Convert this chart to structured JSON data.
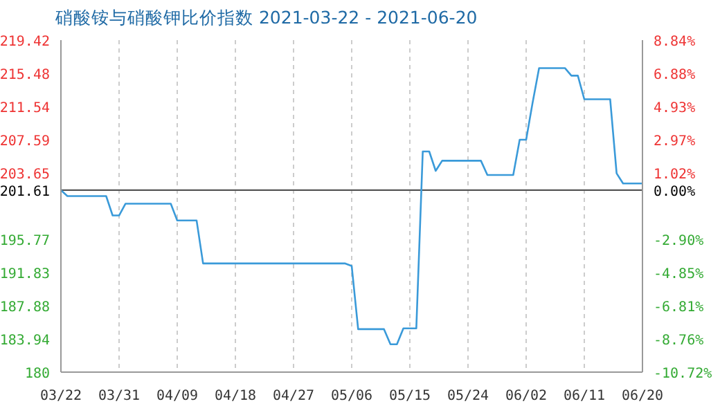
{
  "chart_data": {
    "type": "line",
    "title": "硝酸铵与硝酸钾比价指数 2021-03-22 - 2021-06-20",
    "x": [
      "2021-03-22",
      "2021-03-23",
      "2021-03-29",
      "2021-03-30",
      "2021-03-31",
      "2021-04-01",
      "2021-04-08",
      "2021-04-09",
      "2021-04-12",
      "2021-04-13",
      "2021-05-05",
      "2021-05-06",
      "2021-05-07",
      "2021-05-11",
      "2021-05-12",
      "2021-05-13",
      "2021-05-14",
      "2021-05-16",
      "2021-05-17",
      "2021-05-18",
      "2021-05-19",
      "2021-05-20",
      "2021-05-26",
      "2021-05-27",
      "2021-05-31",
      "2021-06-01",
      "2021-06-02",
      "2021-06-03",
      "2021-06-04",
      "2021-06-08",
      "2021-06-09",
      "2021-06-10",
      "2021-06-11",
      "2021-06-15",
      "2021-06-16",
      "2021-06-17",
      "2021-06-20"
    ],
    "series": [
      {
        "color": "#3a9ad9",
        "values": [
          201.6,
          200.9,
          200.9,
          198.6,
          198.6,
          200.0,
          200.0,
          198.0,
          198.0,
          192.9,
          192.9,
          192.6,
          185.1,
          185.1,
          183.3,
          183.3,
          185.2,
          185.2,
          206.2,
          206.2,
          203.9,
          205.1,
          205.1,
          203.4,
          203.4,
          207.6,
          207.6,
          212.0,
          216.1,
          216.1,
          215.2,
          215.2,
          212.4,
          212.4,
          203.6,
          202.4,
          202.4
        ]
      }
    ],
    "xlim": [
      "2021-03-22",
      "2021-06-20"
    ],
    "xticks": [
      {
        "value": "2021-03-22",
        "label": "03/22"
      },
      {
        "value": "2021-03-31",
        "label": "03/31"
      },
      {
        "value": "2021-04-09",
        "label": "04/09"
      },
      {
        "value": "2021-04-18",
        "label": "04/18"
      },
      {
        "value": "2021-04-27",
        "label": "04/27"
      },
      {
        "value": "2021-05-06",
        "label": "05/06"
      },
      {
        "value": "2021-05-15",
        "label": "05/15"
      },
      {
        "value": "2021-05-24",
        "label": "05/24"
      },
      {
        "value": "2021-06-02",
        "label": "06/02"
      },
      {
        "value": "2021-06-11",
        "label": "06/11"
      },
      {
        "value": "2021-06-20",
        "label": "06/20"
      }
    ],
    "ylim": [
      180,
      219.42
    ],
    "yticks": [
      180,
      183.94,
      187.88,
      191.83,
      195.77,
      201.61,
      203.65,
      207.59,
      211.54,
      215.48,
      219.42
    ],
    "y2lim": [
      -10.72,
      8.84
    ],
    "y2ticks": [
      {
        "value": -10.72,
        "label": "-10.72%"
      },
      {
        "value": -8.76,
        "label": "-8.76%"
      },
      {
        "value": -6.81,
        "label": "-6.81%"
      },
      {
        "value": -4.85,
        "label": "-4.85%"
      },
      {
        "value": -2.9,
        "label": "-2.90%"
      },
      {
        "value": 0,
        "label": "0.00%"
      },
      {
        "value": 1.02,
        "label": "1.02%"
      },
      {
        "value": 2.97,
        "label": "2.97%"
      },
      {
        "value": 4.93,
        "label": "4.93%"
      },
      {
        "value": 6.88,
        "label": "6.88%"
      },
      {
        "value": 8.84,
        "label": "8.84%"
      }
    ],
    "ref_lines": [
      {
        "axis": "y",
        "value": 201.61,
        "color": "#555555"
      }
    ],
    "grid": true,
    "marker": "none",
    "line_style": "solid"
  }
}
